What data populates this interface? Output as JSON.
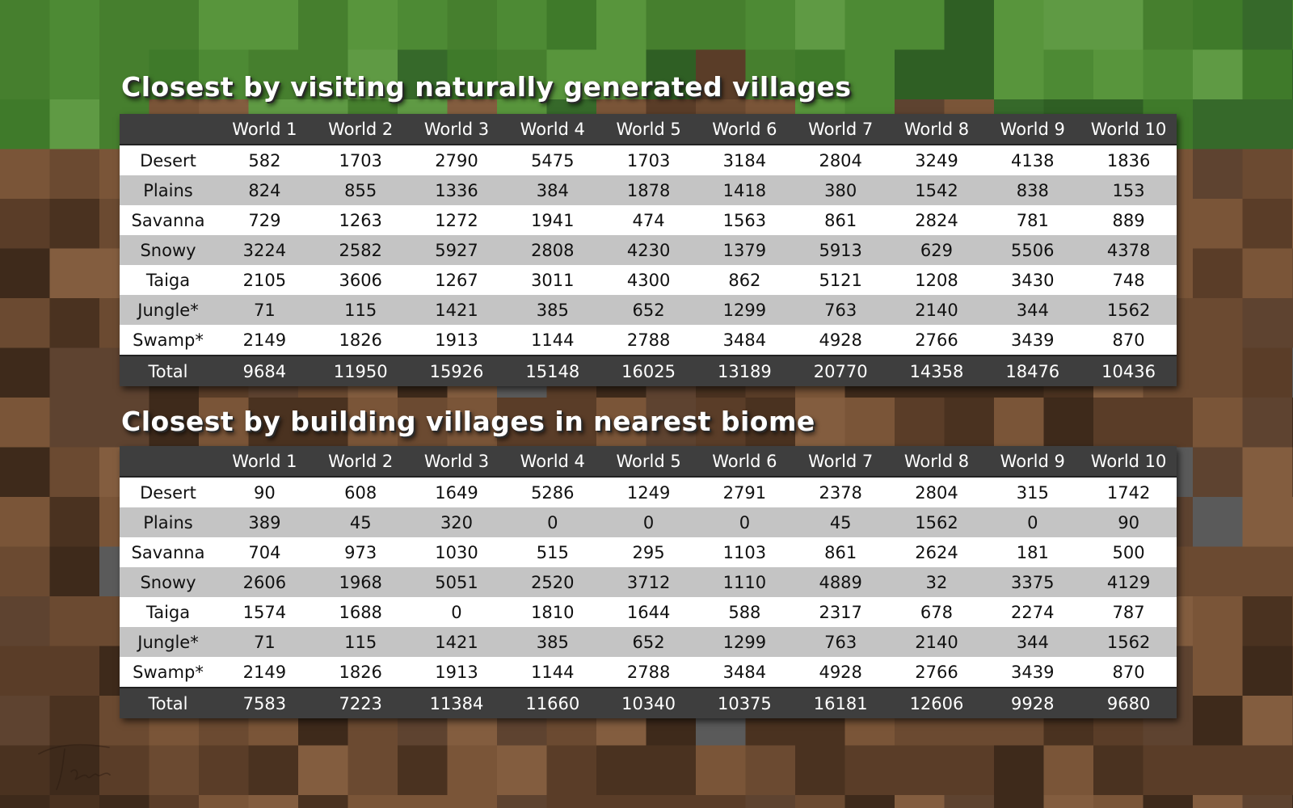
{
  "chart_data": [
    {
      "type": "table",
      "title": "Closest by visiting naturally generated villages",
      "columns": [
        "World 1",
        "World 2",
        "World 3",
        "World 4",
        "World 5",
        "World 6",
        "World 7",
        "World 8",
        "World 9",
        "World 10"
      ],
      "rows": [
        {
          "label": "Desert",
          "values": [
            "582",
            "1703",
            "2790",
            "5475",
            "1703",
            "3184",
            "2804",
            "3249",
            "4138",
            "1836"
          ]
        },
        {
          "label": "Plains",
          "values": [
            "824",
            "855",
            "1336",
            "384",
            "1878",
            "1418",
            "380",
            "1542",
            "838",
            "153"
          ]
        },
        {
          "label": "Savanna",
          "values": [
            "729",
            "1263",
            "1272",
            "1941",
            "474",
            "1563",
            "861",
            "2824",
            "781",
            "889"
          ]
        },
        {
          "label": "Snowy",
          "values": [
            "3224",
            "2582",
            "5927",
            "2808",
            "4230",
            "1379",
            "5913",
            "629",
            "5506",
            "4378"
          ]
        },
        {
          "label": "Taiga",
          "values": [
            "2105",
            "3606",
            "1267",
            "3011",
            "4300",
            "862",
            "5121",
            "1208",
            "3430",
            "748"
          ]
        },
        {
          "label": "Jungle*",
          "values": [
            "71",
            "115",
            "1421",
            "385",
            "652",
            "1299",
            "763",
            "2140",
            "344",
            "1562"
          ]
        },
        {
          "label": "Swamp*",
          "values": [
            "2149",
            "1826",
            "1913",
            "1144",
            "2788",
            "3484",
            "4928",
            "2766",
            "3439",
            "870"
          ]
        }
      ],
      "total": {
        "label": "Total",
        "values": [
          "9684",
          "11950",
          "15926",
          "15148",
          "16025",
          "13189",
          "20770",
          "14358",
          "18476",
          "10436"
        ]
      }
    },
    {
      "type": "table",
      "title": "Closest by building villages in nearest biome",
      "columns": [
        "World 1",
        "World 2",
        "World 3",
        "World 4",
        "World 5",
        "World 6",
        "World 7",
        "World 8",
        "World 9",
        "World 10"
      ],
      "rows": [
        {
          "label": "Desert",
          "values": [
            "90",
            "608",
            "1649",
            "5286",
            "1249",
            "2791",
            "2378",
            "2804",
            "315",
            "1742"
          ]
        },
        {
          "label": "Plains",
          "values": [
            "389",
            "45",
            "320",
            "0",
            "0",
            "0",
            "45",
            "1562",
            "0",
            "90"
          ]
        },
        {
          "label": "Savanna",
          "values": [
            "704",
            "973",
            "1030",
            "515",
            "295",
            "1103",
            "861",
            "2624",
            "181",
            "500"
          ]
        },
        {
          "label": "Snowy",
          "values": [
            "2606",
            "1968",
            "5051",
            "2520",
            "3712",
            "1110",
            "4889",
            "32",
            "3375",
            "4129"
          ]
        },
        {
          "label": "Taiga",
          "values": [
            "1574",
            "1688",
            "0",
            "1810",
            "1644",
            "588",
            "2317",
            "678",
            "2274",
            "787"
          ]
        },
        {
          "label": "Jungle*",
          "values": [
            "71",
            "115",
            "1421",
            "385",
            "652",
            "1299",
            "763",
            "2140",
            "344",
            "1562"
          ]
        },
        {
          "label": "Swamp*",
          "values": [
            "2149",
            "1826",
            "1913",
            "1144",
            "2788",
            "3484",
            "4928",
            "2766",
            "3439",
            "870"
          ]
        }
      ],
      "total": {
        "label": "Total",
        "values": [
          "7583",
          "7223",
          "11384",
          "11660",
          "10340",
          "10375",
          "16181",
          "12606",
          "9928",
          "9680"
        ]
      }
    }
  ],
  "background": {
    "grass_colors": [
      "#3f7a2a",
      "#4d8a34",
      "#58953c",
      "#467f2e",
      "#36692a",
      "#2f5f24",
      "#5f9a44"
    ],
    "dirt_colors": [
      "#5a3d28",
      "#6b4a31",
      "#4a3220",
      "#7a5538",
      "#3e2a1b",
      "#835d3f",
      "#5e4330"
    ],
    "stone_colors": [
      "#5a5a5a",
      "#6e6e6e"
    ]
  },
  "signature_icon": "handwritten-signature-icon"
}
